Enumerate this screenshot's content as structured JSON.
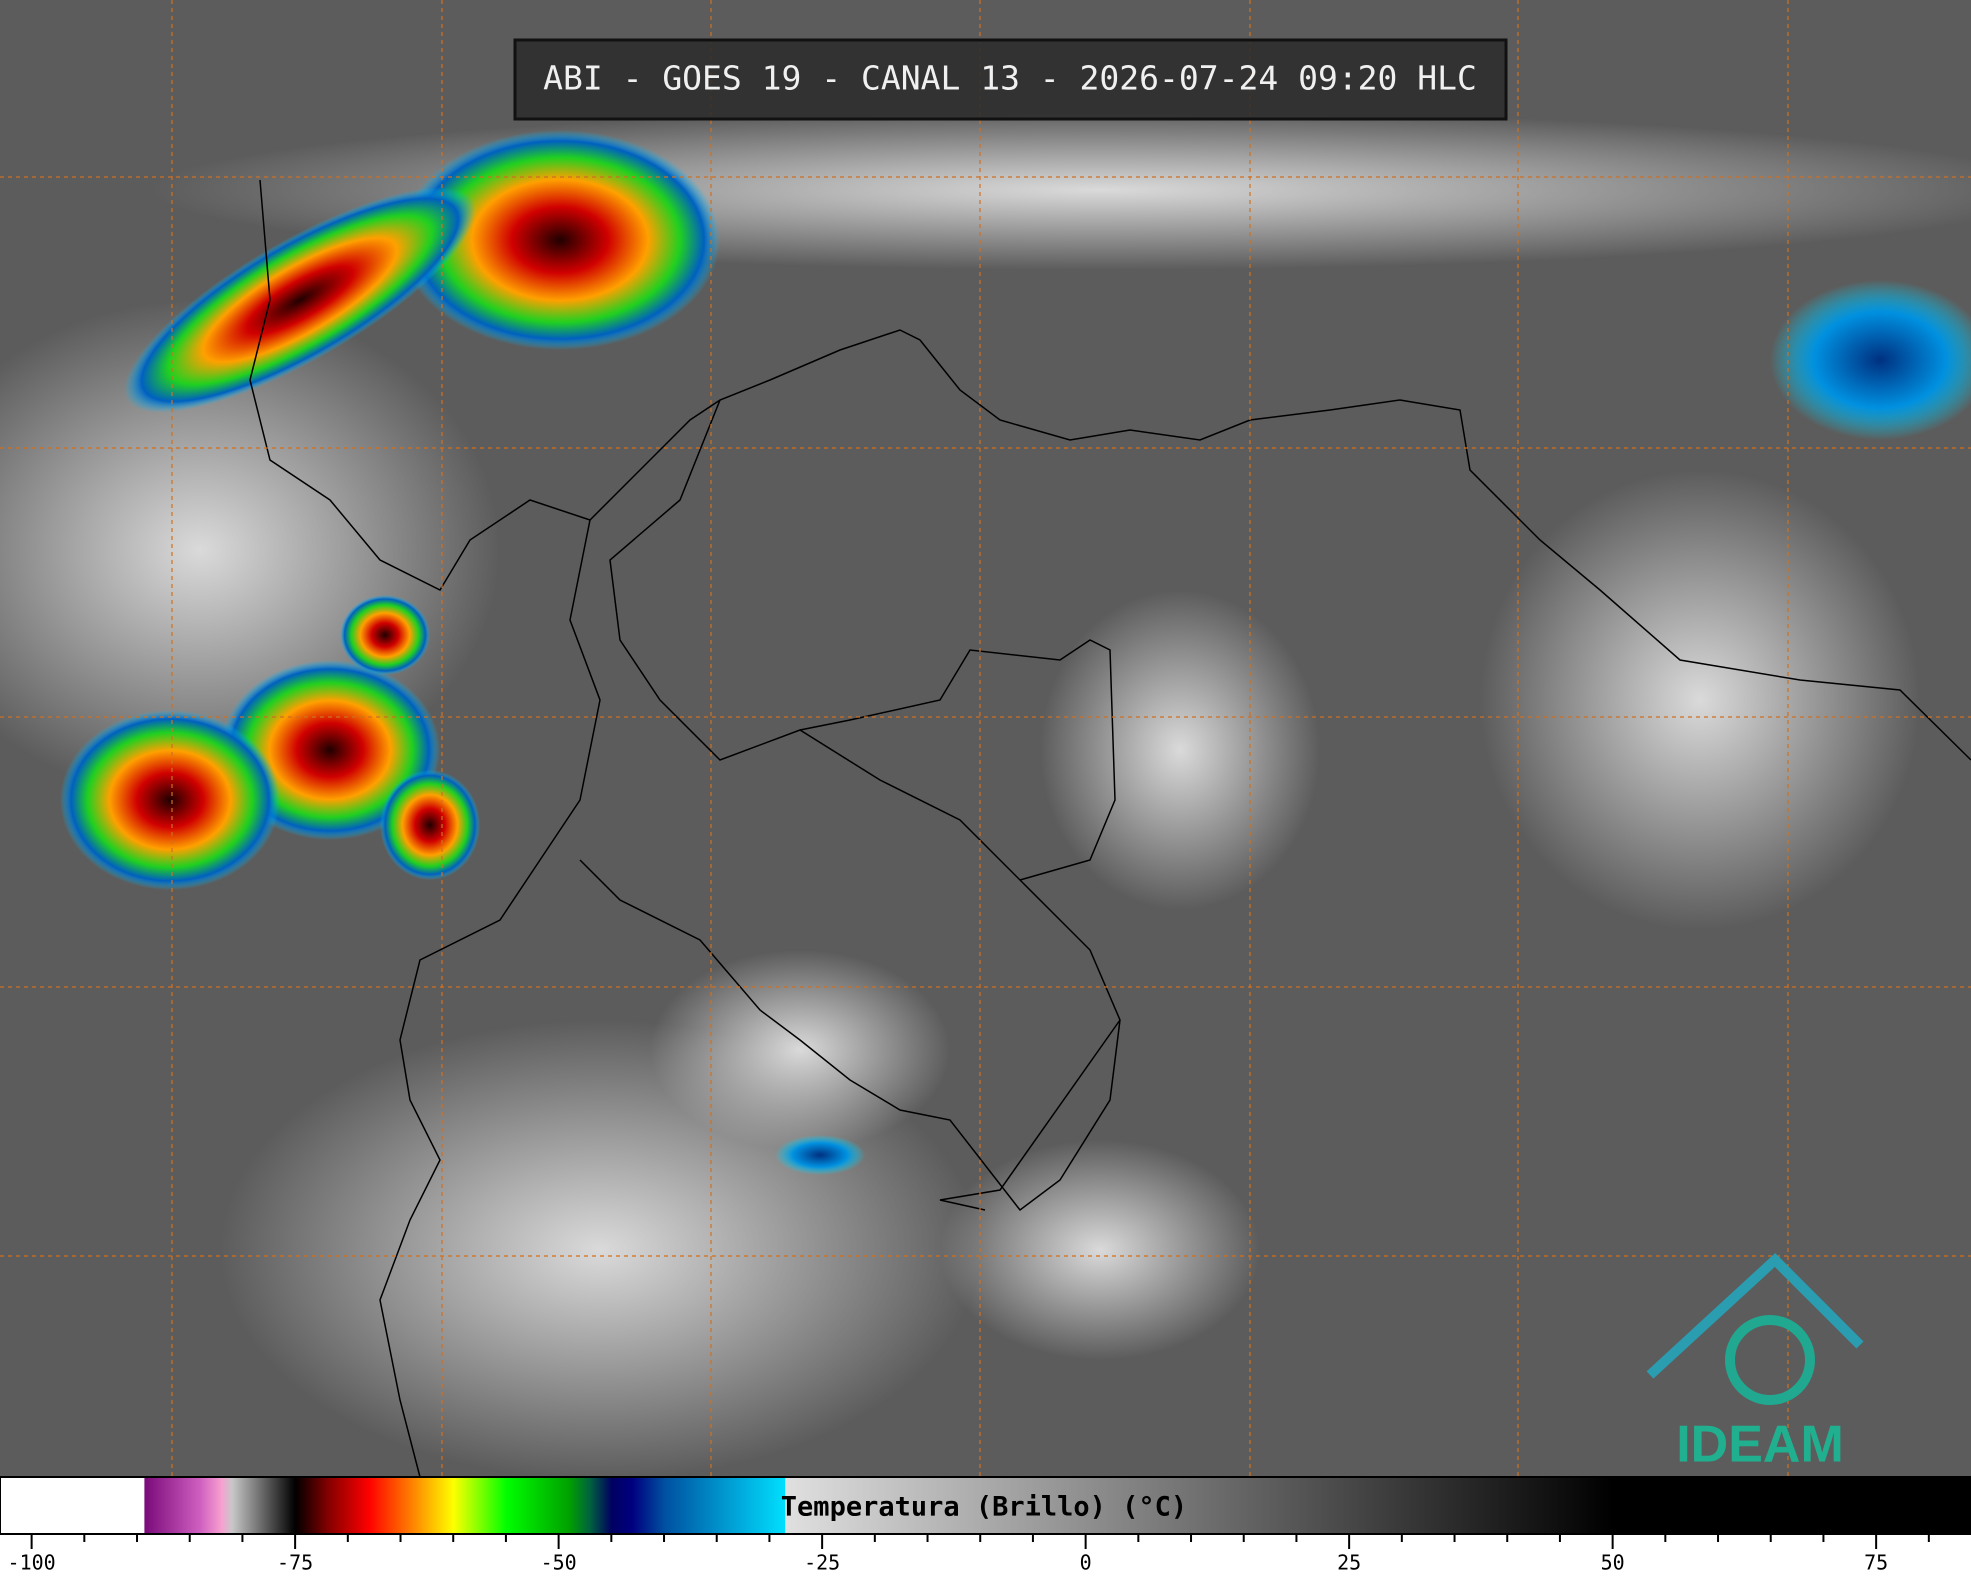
{
  "title": "ABI - GOES 19 - CANAL 13 - 2026-07-24 09:20 HLC",
  "logo": "IDEAM",
  "colorbar": {
    "label": "Temperatura (Brillo) (°C)",
    "lim": [
      -103,
      84
    ],
    "ticks": [
      -100,
      -75,
      -50,
      -25,
      0,
      25,
      50,
      75
    ],
    "minor_ticks": [
      -95,
      -90,
      -85,
      -80,
      -70,
      -65,
      -60,
      -55,
      -45,
      -40,
      -35,
      -30,
      -20,
      -15,
      -10,
      -5,
      5,
      10,
      15,
      20,
      30,
      35,
      40,
      45,
      55,
      60,
      65,
      70,
      80
    ],
    "stops": [
      {
        "value": -103,
        "color": "#ffffff"
      },
      {
        "value": -89.3,
        "color": "#ffffff"
      },
      {
        "value": -89.3,
        "color": "#7a0a7a"
      },
      {
        "value": -84,
        "color": "#d060c0"
      },
      {
        "value": -82,
        "color": "#f8a0d0"
      },
      {
        "value": -81,
        "color": "#c8c8c8"
      },
      {
        "value": -75.5,
        "color": "#101010"
      },
      {
        "value": -75,
        "color": "#000000"
      },
      {
        "value": -72,
        "color": "#800000"
      },
      {
        "value": -68,
        "color": "#ff0000"
      },
      {
        "value": -63,
        "color": "#ffa000"
      },
      {
        "value": -60,
        "color": "#ffff00"
      },
      {
        "value": -55,
        "color": "#00ff00"
      },
      {
        "value": -49,
        "color": "#00a000"
      },
      {
        "value": -47,
        "color": "#006040"
      },
      {
        "value": -45,
        "color": "#000060"
      },
      {
        "value": -43,
        "color": "#000080"
      },
      {
        "value": -40,
        "color": "#0050a0"
      },
      {
        "value": -28.5,
        "color": "#00e0ff"
      },
      {
        "value": -28.5,
        "color": "#e0e0e0"
      },
      {
        "value": 50,
        "color": "#000000"
      },
      {
        "value": 84,
        "color": "#000000"
      }
    ]
  }
}
